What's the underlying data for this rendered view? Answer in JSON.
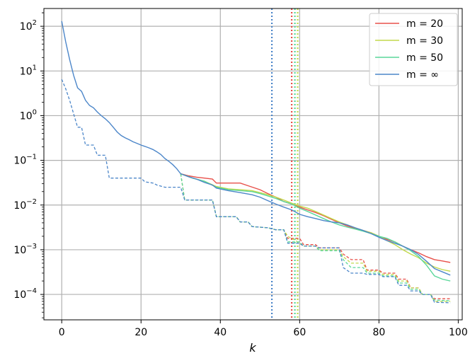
{
  "chart_data": {
    "type": "line",
    "title": "",
    "xlabel": "k",
    "ylabel": "",
    "yscale": "log",
    "xlim": [
      -4.5,
      101
    ],
    "ylim": [
      2.7e-05,
      250
    ],
    "xticks": [
      0,
      20,
      40,
      60,
      80,
      100
    ],
    "xtick_labels": [
      "0",
      "20",
      "40",
      "60",
      "80",
      "100"
    ],
    "ytick_exponents": [
      -4,
      -3,
      -2,
      -1,
      0,
      1,
      2
    ],
    "grid": true,
    "legend_position": "top-right",
    "series": [
      {
        "name": "m = 20",
        "color": "#e8504a",
        "solid": [
          [
            30,
            0.05
          ],
          [
            32,
            0.045
          ],
          [
            34,
            0.042
          ],
          [
            36,
            0.04
          ],
          [
            38,
            0.038
          ],
          [
            39,
            0.031
          ],
          [
            42,
            0.031
          ],
          [
            45,
            0.031
          ],
          [
            47,
            0.027
          ],
          [
            50,
            0.022
          ],
          [
            52,
            0.018
          ],
          [
            54,
            0.015
          ],
          [
            56,
            0.012
          ],
          [
            58,
            0.0105
          ],
          [
            60,
            0.009
          ],
          [
            62,
            0.0078
          ],
          [
            64,
            0.0068
          ],
          [
            66,
            0.0058
          ],
          [
            68,
            0.0048
          ],
          [
            70,
            0.004
          ],
          [
            72,
            0.0034
          ],
          [
            74,
            0.003
          ],
          [
            76,
            0.0027
          ],
          [
            78,
            0.0024
          ],
          [
            80,
            0.002
          ],
          [
            82,
            0.0017
          ],
          [
            84,
            0.0015
          ],
          [
            86,
            0.0012
          ],
          [
            88,
            0.001
          ],
          [
            90,
            0.00085
          ],
          [
            92,
            0.0007
          ],
          [
            94,
            0.0006
          ],
          [
            96,
            0.00056
          ],
          [
            98,
            0.00052
          ]
        ],
        "dashed": [
          [
            30,
            0.05
          ],
          [
            31,
            0.013
          ],
          [
            38,
            0.013
          ],
          [
            39,
            0.0055
          ],
          [
            44,
            0.0055
          ],
          [
            45,
            0.0042
          ],
          [
            47,
            0.0042
          ],
          [
            48,
            0.0033
          ],
          [
            52,
            0.0031
          ],
          [
            54,
            0.0028
          ],
          [
            56,
            0.0028
          ],
          [
            57,
            0.0018
          ],
          [
            60,
            0.0018
          ],
          [
            61,
            0.0013
          ],
          [
            64,
            0.0013
          ],
          [
            65,
            0.0011
          ],
          [
            70,
            0.0011
          ],
          [
            71,
            0.0008
          ],
          [
            73,
            0.0006
          ],
          [
            76,
            0.0006
          ],
          [
            77,
            0.00035
          ],
          [
            80,
            0.00035
          ],
          [
            81,
            0.0003
          ],
          [
            84,
            0.0003
          ],
          [
            85,
            0.00022
          ],
          [
            87,
            0.00022
          ],
          [
            88,
            0.00014
          ],
          [
            90,
            0.00014
          ],
          [
            91,
            0.0001
          ],
          [
            93,
            0.0001
          ],
          [
            94,
            8e-05
          ],
          [
            98,
            8e-05
          ]
        ],
        "vline": 58
      },
      {
        "name": "m = 30",
        "color": "#c2d94c",
        "solid": [
          [
            30,
            0.05
          ],
          [
            33,
            0.04
          ],
          [
            36,
            0.034
          ],
          [
            39,
            0.026
          ],
          [
            42,
            0.023
          ],
          [
            45,
            0.022
          ],
          [
            48,
            0.021
          ],
          [
            50,
            0.019
          ],
          [
            52,
            0.017
          ],
          [
            54,
            0.015
          ],
          [
            56,
            0.013
          ],
          [
            58,
            0.011
          ],
          [
            60,
            0.0095
          ],
          [
            62,
            0.0085
          ],
          [
            64,
            0.0072
          ],
          [
            66,
            0.006
          ],
          [
            68,
            0.005
          ],
          [
            70,
            0.0042
          ],
          [
            72,
            0.0036
          ],
          [
            74,
            0.0031
          ],
          [
            76,
            0.0027
          ],
          [
            78,
            0.0024
          ],
          [
            80,
            0.002
          ],
          [
            82,
            0.0016
          ],
          [
            84,
            0.0013
          ],
          [
            86,
            0.001
          ],
          [
            88,
            0.0008
          ],
          [
            90,
            0.00066
          ],
          [
            92,
            0.0005
          ],
          [
            94,
            0.00041
          ],
          [
            96,
            0.00036
          ],
          [
            98,
            0.00033
          ]
        ],
        "dashed": [
          [
            30,
            0.05
          ],
          [
            31,
            0.013
          ],
          [
            38,
            0.013
          ],
          [
            39,
            0.0055
          ],
          [
            44,
            0.0055
          ],
          [
            45,
            0.0042
          ],
          [
            47,
            0.0042
          ],
          [
            48,
            0.0033
          ],
          [
            52,
            0.0031
          ],
          [
            54,
            0.0028
          ],
          [
            56,
            0.0028
          ],
          [
            57,
            0.002
          ],
          [
            59,
            0.0016
          ],
          [
            61,
            0.0012
          ],
          [
            64,
            0.0012
          ],
          [
            65,
            0.001
          ],
          [
            70,
            0.001
          ],
          [
            71,
            0.0007
          ],
          [
            73,
            0.0005
          ],
          [
            76,
            0.0005
          ],
          [
            77,
            0.00033
          ],
          [
            80,
            0.00033
          ],
          [
            81,
            0.00028
          ],
          [
            84,
            0.00028
          ],
          [
            85,
            0.0002
          ],
          [
            87,
            0.0002
          ],
          [
            88,
            0.00014
          ],
          [
            90,
            0.00014
          ],
          [
            91,
            0.0001
          ],
          [
            93,
            0.0001
          ],
          [
            94,
            7e-05
          ],
          [
            98,
            7e-05
          ]
        ],
        "vline": 59.5
      },
      {
        "name": "m = 50",
        "color": "#5ad79a",
        "solid": [
          [
            30,
            0.05
          ],
          [
            33,
            0.04
          ],
          [
            36,
            0.034
          ],
          [
            39,
            0.025
          ],
          [
            42,
            0.022
          ],
          [
            45,
            0.021
          ],
          [
            48,
            0.02
          ],
          [
            50,
            0.018
          ],
          [
            52,
            0.016
          ],
          [
            54,
            0.014
          ],
          [
            56,
            0.012
          ],
          [
            58,
            0.0105
          ],
          [
            60,
            0.0085
          ],
          [
            62,
            0.0072
          ],
          [
            64,
            0.006
          ],
          [
            66,
            0.005
          ],
          [
            68,
            0.0042
          ],
          [
            70,
            0.0036
          ],
          [
            72,
            0.0032
          ],
          [
            74,
            0.0029
          ],
          [
            76,
            0.0026
          ],
          [
            78,
            0.0023
          ],
          [
            80,
            0.002
          ],
          [
            82,
            0.0018
          ],
          [
            84,
            0.0015
          ],
          [
            86,
            0.0012
          ],
          [
            88,
            0.00095
          ],
          [
            90,
            0.0007
          ],
          [
            92,
            0.00045
          ],
          [
            94,
            0.00026
          ],
          [
            96,
            0.00022
          ],
          [
            98,
            0.0002
          ]
        ],
        "dashed": [
          [
            30,
            0.05
          ],
          [
            31,
            0.013
          ],
          [
            38,
            0.013
          ],
          [
            39,
            0.0055
          ],
          [
            44,
            0.0055
          ],
          [
            45,
            0.0042
          ],
          [
            47,
            0.0042
          ],
          [
            48,
            0.0033
          ],
          [
            52,
            0.0031
          ],
          [
            54,
            0.0028
          ],
          [
            56,
            0.0028
          ],
          [
            57,
            0.0015
          ],
          [
            60,
            0.0015
          ],
          [
            61,
            0.0012
          ],
          [
            64,
            0.0012
          ],
          [
            65,
            0.00095
          ],
          [
            70,
            0.00095
          ],
          [
            71,
            0.0006
          ],
          [
            73,
            0.0004
          ],
          [
            76,
            0.0004
          ],
          [
            77,
            0.0003
          ],
          [
            80,
            0.0003
          ],
          [
            81,
            0.00026
          ],
          [
            84,
            0.00026
          ],
          [
            85,
            0.00018
          ],
          [
            87,
            0.00018
          ],
          [
            88,
            0.00013
          ],
          [
            90,
            0.00013
          ],
          [
            91,
            0.0001
          ],
          [
            93,
            0.0001
          ],
          [
            94,
            7.5e-05
          ],
          [
            98,
            7.2e-05
          ]
        ],
        "vline": 58.8
      },
      {
        "name": "m = ∞",
        "color": "#4c86c9",
        "solid": [
          [
            0,
            130
          ],
          [
            1,
            45
          ],
          [
            2,
            18
          ],
          [
            3,
            8
          ],
          [
            4,
            4.2
          ],
          [
            5,
            3.5
          ],
          [
            6,
            2.2
          ],
          [
            7,
            1.7
          ],
          [
            8,
            1.5
          ],
          [
            9,
            1.2
          ],
          [
            10,
            1.0
          ],
          [
            11,
            0.85
          ],
          [
            12,
            0.7
          ],
          [
            13,
            0.55
          ],
          [
            14,
            0.43
          ],
          [
            15,
            0.36
          ],
          [
            16,
            0.32
          ],
          [
            17,
            0.29
          ],
          [
            18,
            0.26
          ],
          [
            19,
            0.24
          ],
          [
            20,
            0.22
          ],
          [
            21,
            0.205
          ],
          [
            22,
            0.19
          ],
          [
            23,
            0.175
          ],
          [
            24,
            0.155
          ],
          [
            25,
            0.135
          ],
          [
            26,
            0.11
          ],
          [
            27,
            0.095
          ],
          [
            28,
            0.08
          ],
          [
            29,
            0.065
          ],
          [
            30,
            0.05
          ],
          [
            32,
            0.043
          ],
          [
            34,
            0.038
          ],
          [
            36,
            0.032
          ],
          [
            38,
            0.028
          ],
          [
            39,
            0.024
          ],
          [
            42,
            0.021
          ],
          [
            45,
            0.019
          ],
          [
            48,
            0.017
          ],
          [
            50,
            0.015
          ],
          [
            52,
            0.0125
          ],
          [
            54,
            0.0105
          ],
          [
            56,
            0.009
          ],
          [
            58,
            0.0078
          ],
          [
            60,
            0.0062
          ],
          [
            62,
            0.0055
          ],
          [
            64,
            0.005
          ],
          [
            66,
            0.0045
          ],
          [
            68,
            0.0042
          ],
          [
            70,
            0.004
          ],
          [
            72,
            0.0036
          ],
          [
            74,
            0.0031
          ],
          [
            76,
            0.0027
          ],
          [
            78,
            0.0023
          ],
          [
            80,
            0.0019
          ],
          [
            82,
            0.0016
          ],
          [
            84,
            0.0014
          ],
          [
            86,
            0.0012
          ],
          [
            88,
            0.001
          ],
          [
            90,
            0.00078
          ],
          [
            92,
            0.00055
          ],
          [
            94,
            0.00038
          ],
          [
            96,
            0.00032
          ],
          [
            98,
            0.00027
          ]
        ],
        "dashed": [
          [
            0,
            6.5
          ],
          [
            1,
            4
          ],
          [
            2,
            2.2
          ],
          [
            3,
            1.1
          ],
          [
            4,
            0.55
          ],
          [
            5,
            0.55
          ],
          [
            6,
            0.22
          ],
          [
            8,
            0.22
          ],
          [
            9,
            0.13
          ],
          [
            11,
            0.13
          ],
          [
            12,
            0.04
          ],
          [
            20,
            0.04
          ],
          [
            21,
            0.033
          ],
          [
            23,
            0.031
          ],
          [
            24,
            0.028
          ],
          [
            26,
            0.025
          ],
          [
            30,
            0.025
          ],
          [
            31,
            0.013
          ],
          [
            38,
            0.013
          ],
          [
            39,
            0.0055
          ],
          [
            44,
            0.0055
          ],
          [
            45,
            0.0042
          ],
          [
            47,
            0.0042
          ],
          [
            48,
            0.0033
          ],
          [
            52,
            0.0031
          ],
          [
            54,
            0.0028
          ],
          [
            56,
            0.0028
          ],
          [
            57,
            0.0014
          ],
          [
            60,
            0.0014
          ],
          [
            61,
            0.0012
          ],
          [
            64,
            0.0012
          ],
          [
            65,
            0.0011
          ],
          [
            70,
            0.0011
          ],
          [
            71,
            0.0004
          ],
          [
            73,
            0.0003
          ],
          [
            76,
            0.0003
          ],
          [
            77,
            0.00028
          ],
          [
            80,
            0.00028
          ],
          [
            81,
            0.00025
          ],
          [
            84,
            0.00025
          ],
          [
            85,
            0.00016
          ],
          [
            87,
            0.00016
          ],
          [
            88,
            0.00012
          ],
          [
            90,
            0.00012
          ],
          [
            91,
            0.0001
          ],
          [
            93,
            0.0001
          ],
          [
            94,
            6.7e-05
          ],
          [
            98,
            6.5e-05
          ]
        ],
        "vline": 53
      }
    ]
  }
}
